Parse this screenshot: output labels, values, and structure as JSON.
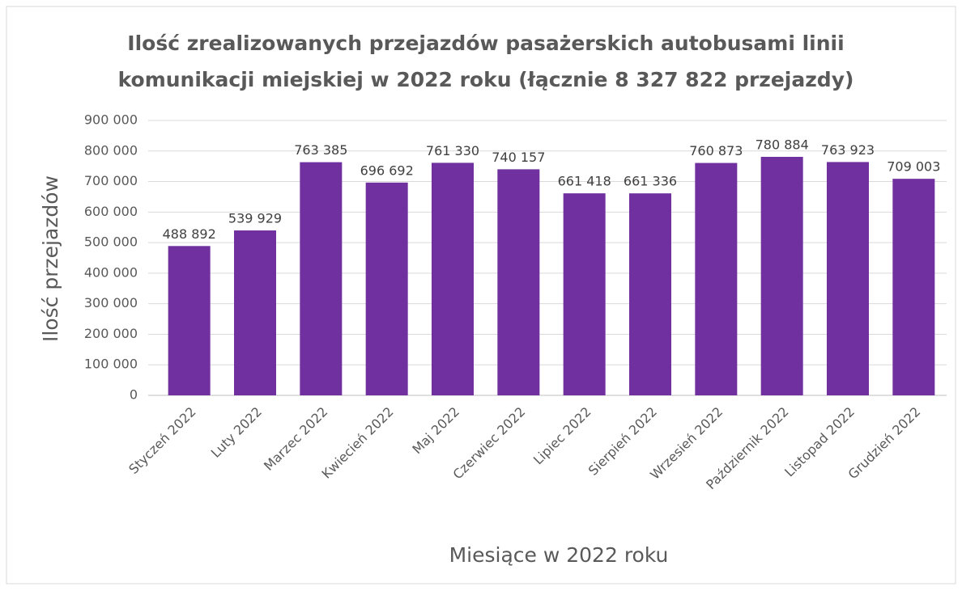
{
  "chart_data": {
    "type": "bar",
    "title": [
      "Ilość zrealizowanych przejazdów pasażerskich autobusami linii",
      "komunikacji miejskiej w 2022 roku (łącznie 8 327 822 przejazdy)"
    ],
    "x_label": "Miesiące w 2022 roku",
    "y_label": "Ilość przejazdów",
    "categories": [
      "Styczeń 2022",
      "Luty 2022",
      "Marzec 2022",
      "Kwiecień 2022",
      "Maj 2022",
      "Czerwiec 2022",
      "Lipiec 2022",
      "Sierpień 2022",
      "Wrzesień 2022",
      "Październik 2022",
      "Listopad 2022",
      "Grudzień 2022"
    ],
    "values": [
      488892,
      539929,
      763385,
      696692,
      761330,
      740157,
      661418,
      661336,
      760873,
      780884,
      763923,
      709003
    ],
    "value_labels": [
      "488 892",
      "539 929",
      "763 385",
      "696 692",
      "761 330",
      "740 157",
      "661 418",
      "661 336",
      "760 873",
      "780 884",
      "763 923",
      "709 003"
    ],
    "color": "#7030a0",
    "ylim": [
      0,
      900000
    ],
    "yticks": [
      0,
      {
        "value": 100000,
        "label": "100 000"
      },
      {
        "value": 200000,
        "label": "200 000"
      },
      {
        "value": 300000,
        "label": "300 000"
      },
      {
        "value": 400000,
        "label": "400 000"
      },
      {
        "value": 500000,
        "label": "500 000"
      },
      {
        "value": 600000,
        "label": "600 000"
      },
      {
        "value": 700000,
        "label": "700 000"
      },
      {
        "value": 800000,
        "label": "800 000"
      },
      {
        "value": 900000,
        "label": "900 000"
      }
    ],
    "grid": true
  }
}
